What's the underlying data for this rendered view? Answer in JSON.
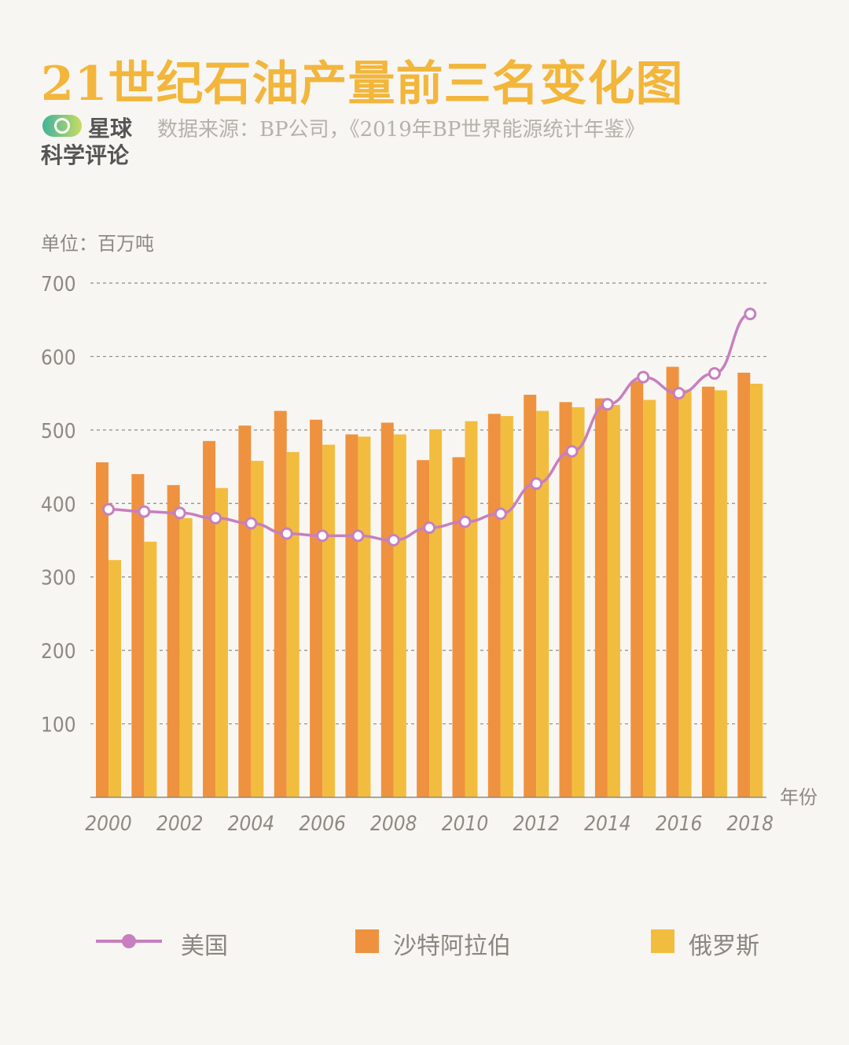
{
  "header": {
    "title": "21世纪石油产量前三名变化图",
    "brand_line1": "星球",
    "brand_line2": "科学评论",
    "source": "数据来源：BP公司，《2019年BP世界能源统计年鉴》",
    "unit_label": "单位：百万吨"
  },
  "colors": {
    "usa": "#c77fbf",
    "saudi": "#ee9240",
    "russia": "#f2bd3e",
    "title": "#f2b63b",
    "grid": "#8f8b85"
  },
  "chart_data": {
    "type": "bar",
    "x_label": "年份",
    "y_ticks": [
      100,
      200,
      300,
      400,
      500,
      600,
      700
    ],
    "ylim": [
      0,
      700
    ],
    "grid": "dashed horizontal",
    "legend_position": "bottom",
    "x": [
      2000,
      2001,
      2002,
      2003,
      2004,
      2005,
      2006,
      2007,
      2008,
      2009,
      2010,
      2011,
      2012,
      2013,
      2014,
      2015,
      2016,
      2017,
      2018
    ],
    "x_tick_labels": [
      "2000",
      "2002",
      "2004",
      "2006",
      "2008",
      "2010",
      "2012",
      "2014",
      "2016",
      "2018"
    ],
    "series": [
      {
        "name": "美国",
        "type": "line",
        "values": [
          392,
          389,
          387,
          380,
          373,
          359,
          356,
          356,
          350,
          367,
          375,
          386,
          427,
          471,
          535,
          572,
          550,
          577,
          658
        ]
      },
      {
        "name": "沙特阿拉伯",
        "type": "bar",
        "values": [
          456,
          440,
          425,
          485,
          506,
          526,
          514,
          494,
          510,
          459,
          463,
          522,
          548,
          538,
          543,
          567,
          586,
          559,
          578
        ]
      },
      {
        "name": "俄罗斯",
        "type": "bar",
        "values": [
          323,
          348,
          380,
          421,
          458,
          470,
          480,
          491,
          494,
          501,
          512,
          519,
          526,
          531,
          534,
          541,
          555,
          554,
          563
        ]
      }
    ]
  }
}
